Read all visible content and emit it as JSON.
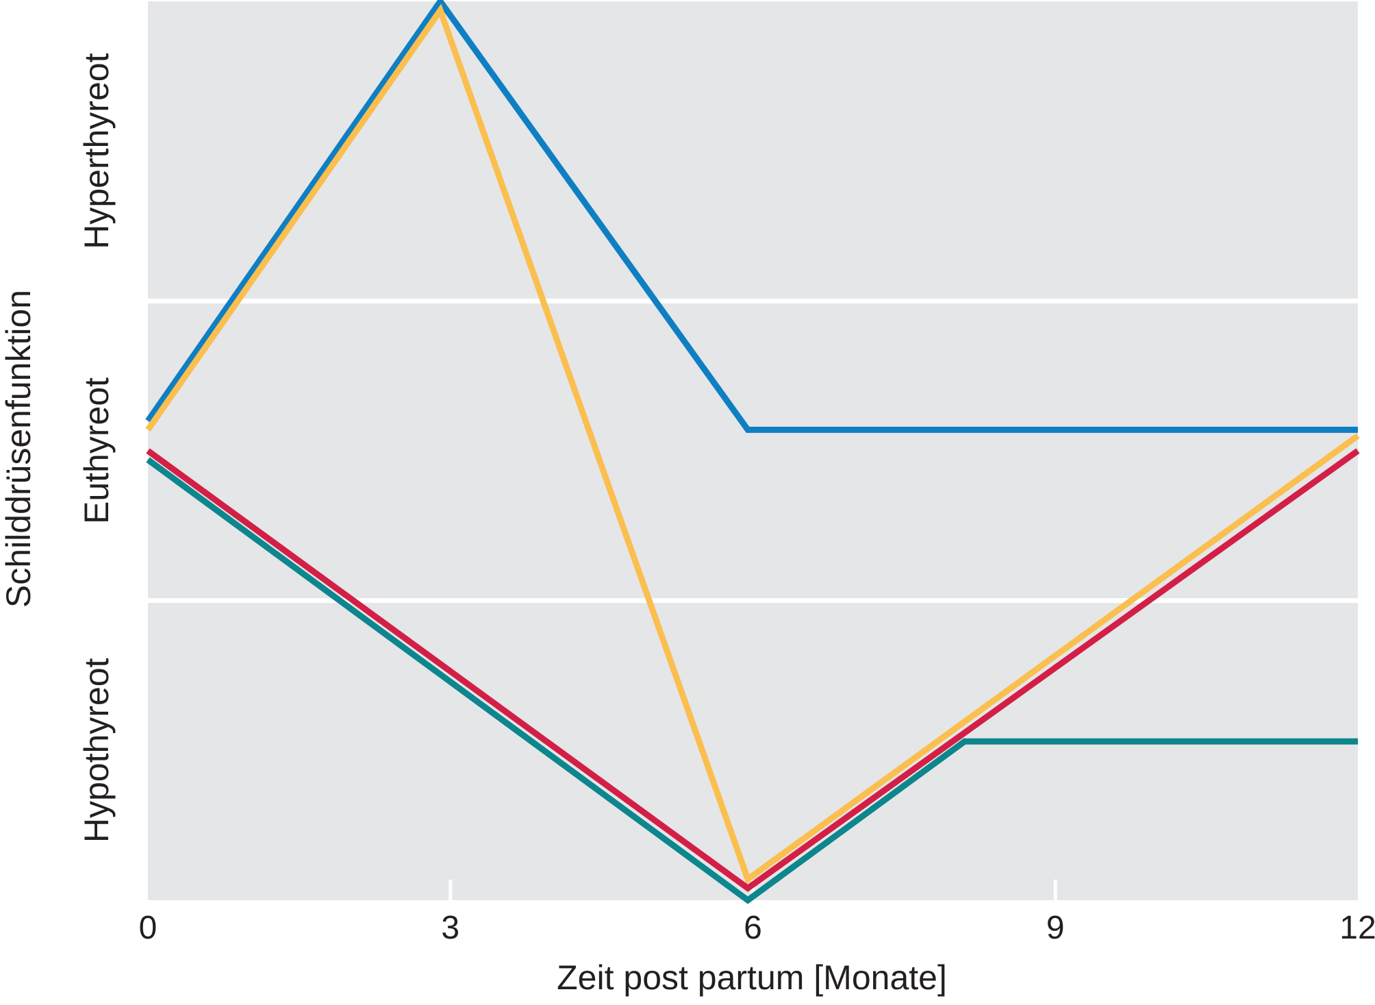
{
  "chart_data": {
    "type": "line",
    "title": "",
    "xlabel": "Zeit post partum [Monate]",
    "ylabel": "Schilddrüsenfunktion",
    "xlim": [
      0,
      12
    ],
    "ylim": [
      0,
      3
    ],
    "x_ticks": [
      "0",
      "3",
      "6",
      "9",
      "12"
    ],
    "grid": false,
    "legend": "none",
    "bands": [
      {
        "label": "Hypothyreot",
        "range": [
          0,
          1
        ]
      },
      {
        "label": "Euthyreot",
        "range": [
          1,
          2
        ]
      },
      {
        "label": "Hyperthyreot",
        "range": [
          2,
          3
        ]
      }
    ],
    "series": [
      {
        "color": "#0f7fc3",
        "points": [
          [
            0,
            1.6
          ],
          [
            2.9,
            3.0
          ],
          [
            5.95,
            1.57
          ],
          [
            12,
            1.57
          ]
        ]
      },
      {
        "color": "#fbbf4f",
        "points": [
          [
            0,
            1.57
          ],
          [
            2.9,
            2.97
          ],
          [
            5.95,
            0.07
          ],
          [
            12,
            1.55
          ]
        ]
      },
      {
        "color": "#d31f46",
        "points": [
          [
            0,
            1.5
          ],
          [
            5.95,
            0.04
          ],
          [
            12,
            1.5
          ]
        ]
      },
      {
        "color": "#0d868d",
        "points": [
          [
            0,
            1.47
          ],
          [
            5.95,
            0.0
          ],
          [
            8.1,
            0.53
          ],
          [
            12,
            0.53
          ]
        ]
      }
    ]
  }
}
